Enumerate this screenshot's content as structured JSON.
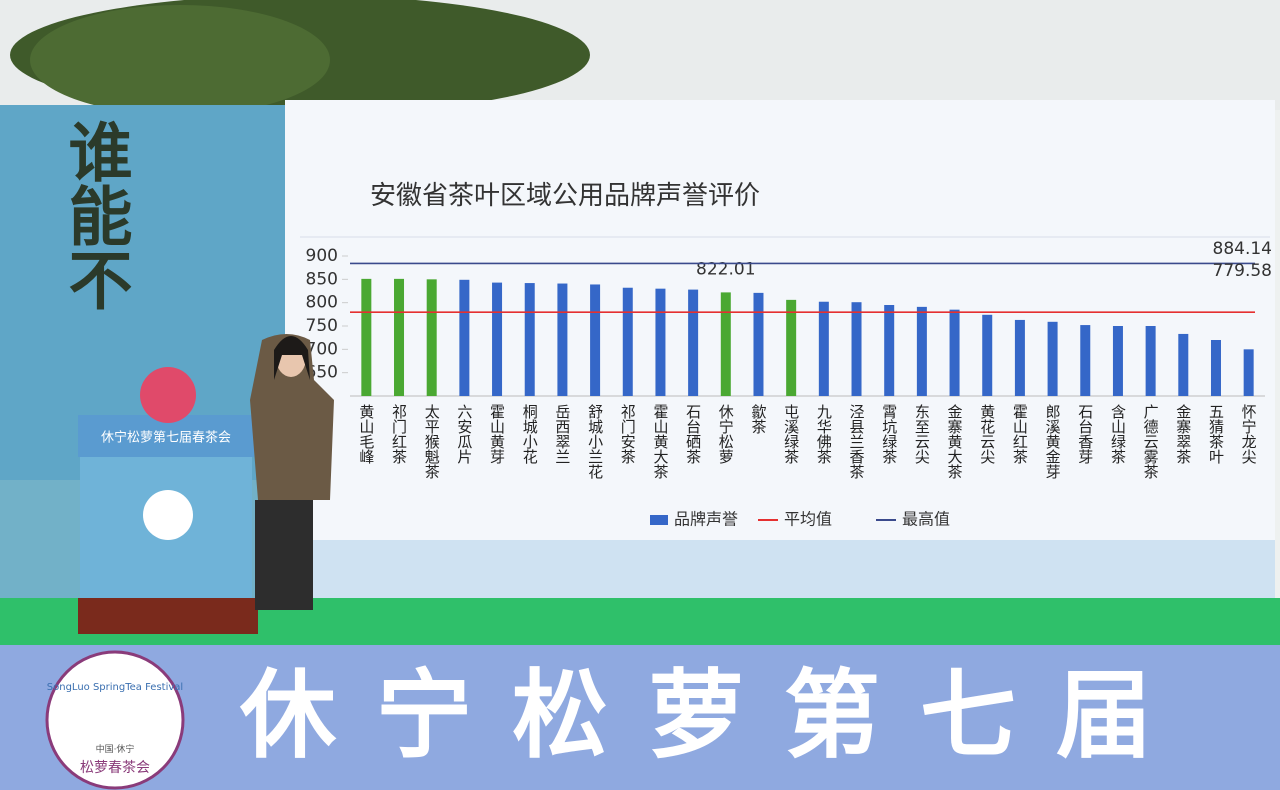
{
  "scene": {
    "left_banner": "谁能不",
    "podium_banner": "休宁松萝第七届春茶会",
    "bottom_banner": "休宁松萝第七届",
    "logo_ring": "SongLuo SpringTea Festival",
    "logo_name": "松萝春茶会",
    "logo_place": "中国·休宁"
  },
  "chart_data": {
    "type": "bar",
    "title": "安徽省茶叶区域公用品牌声誉评价",
    "categories": [
      "黄山毛峰",
      "祁门红茶",
      "太平猴魁茶",
      "六安瓜片",
      "霍山黄芽",
      "桐城小花",
      "岳西翠兰",
      "舒城小兰花",
      "祁门安茶",
      "霍山黄大茶",
      "石台硒茶",
      "休宁松萝",
      "歙茶",
      "屯溪绿茶",
      "九华佛茶",
      "泾县兰香茶",
      "霄坑绿茶",
      "东至云尖",
      "金寨黄大茶",
      "黄花云尖",
      "霍山红茶",
      "郎溪黄金芽",
      "石台香芽",
      "含山绿茶",
      "广德云雾茶",
      "金寨翠茶",
      "五猜茶叶",
      "怀宁龙尖"
    ],
    "series": [
      {
        "name": "品牌声誉",
        "color": "#3567c8",
        "values": [
          851,
          851,
          850,
          849,
          843,
          842,
          841,
          839,
          832,
          830,
          828,
          822.01,
          821,
          806,
          802,
          801,
          795,
          791,
          785,
          774,
          763,
          759,
          752,
          750,
          750,
          733,
          720,
          700
        ],
        "value_labels": [
          null,
          null,
          null,
          null,
          null,
          null,
          null,
          null,
          null,
          null,
          null,
          "822.01",
          null,
          null,
          null,
          null,
          null,
          null,
          null,
          null,
          null,
          null,
          null,
          null,
          null,
          null,
          null,
          null
        ],
        "bar_colors": [
          "#4aa832",
          "#4aa832",
          "#4aa832",
          "#3567c8",
          "#3567c8",
          "#3567c8",
          "#3567c8",
          "#3567c8",
          "#3567c8",
          "#3567c8",
          "#3567c8",
          "#4aa832",
          "#3567c8",
          "#4aa832",
          "#3567c8",
          "#3567c8",
          "#3567c8",
          "#3567c8",
          "#3567c8",
          "#3567c8",
          "#3567c8",
          "#3567c8",
          "#3567c8",
          "#3567c8",
          "#3567c8",
          "#3567c8",
          "#3567c8",
          "#3567c8"
        ]
      }
    ],
    "reference_lines": [
      {
        "name": "平均值",
        "value": 779.58,
        "color": "#e53030"
      },
      {
        "name": "最高值",
        "value": 884.14,
        "color": "#3a4a8c"
      }
    ],
    "ylim": [
      600,
      900
    ],
    "yticks": [
      650,
      700,
      750,
      800,
      850,
      900
    ]
  }
}
